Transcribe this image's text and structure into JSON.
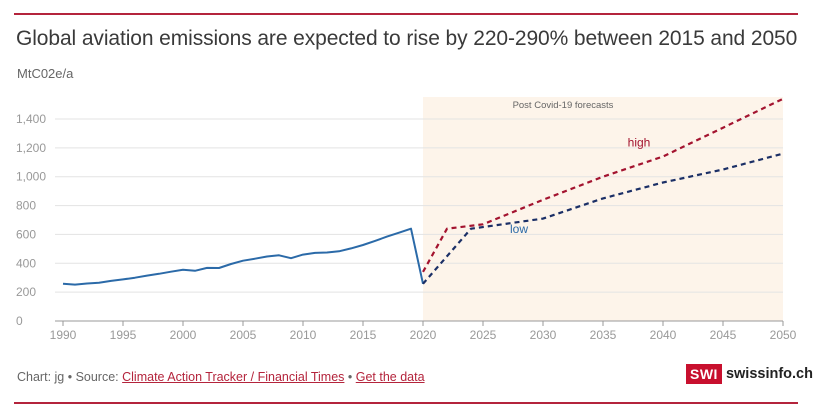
{
  "title": "Global aviation emissions are expected to rise by 220-290% between 2015 and 2050",
  "unit": "MtC02e/a",
  "footer": {
    "prefix": "Chart: jg • Source: ",
    "source_link": "Climate Action Tracker / Financial Times",
    "separator": " • ",
    "data_link": "Get the data"
  },
  "logo": {
    "box": "SWI",
    "text": "swissinfo.ch"
  },
  "colors": {
    "historic": "#2b6aa8",
    "high": "#a3132f",
    "low": "#1b2f66",
    "forecast_bg": "#fdf4ea",
    "accent": "#b4243c"
  },
  "chart_data": {
    "type": "line",
    "xlim": [
      1990,
      2050
    ],
    "ylim": [
      0,
      1500
    ],
    "x_ticks": [
      1990,
      1995,
      2000,
      2005,
      2010,
      2015,
      2020,
      2025,
      2030,
      2035,
      2040,
      2045,
      2050
    ],
    "y_ticks": [
      0,
      200,
      400,
      600,
      800,
      1000,
      1200,
      1400
    ],
    "y_tick_labels": [
      "0",
      "200",
      "400",
      "600",
      "800",
      "1,000",
      "1,200",
      "1,400"
    ],
    "grid": "horizontal",
    "annotations": {
      "forecast_region": {
        "from": 2020,
        "to": 2050,
        "label": "Post Covid-19 forecasts"
      },
      "high_label": {
        "text": "high",
        "x": 2038,
        "y": 1210
      },
      "low_label": {
        "text": "low",
        "x": 2028,
        "y": 610
      }
    },
    "series": [
      {
        "key": "historic",
        "style": "solid",
        "x": [
          1990,
          1991,
          1992,
          1993,
          1994,
          1995,
          1996,
          1997,
          1998,
          1999,
          2000,
          2001,
          2002,
          2003,
          2004,
          2005,
          2006,
          2007,
          2008,
          2009,
          2010,
          2011,
          2012,
          2013,
          2014,
          2015,
          2016,
          2017,
          2018,
          2019,
          2020
        ],
        "values": [
          258,
          252,
          260,
          265,
          278,
          288,
          300,
          315,
          327,
          342,
          355,
          348,
          368,
          367,
          395,
          418,
          432,
          447,
          455,
          435,
          460,
          472,
          475,
          483,
          503,
          527,
          555,
          585,
          612,
          640,
          258
        ]
      },
      {
        "name": "high",
        "style": "dashed",
        "x": [
          2020,
          2022,
          2025,
          2030,
          2035,
          2040,
          2045,
          2050
        ],
        "values": [
          340,
          640,
          670,
          840,
          1000,
          1140,
          1340,
          1540
        ]
      },
      {
        "name": "low",
        "style": "dashed",
        "x": [
          2020,
          2024,
          2030,
          2035,
          2040,
          2045,
          2050
        ],
        "values": [
          258,
          640,
          710,
          850,
          960,
          1050,
          1160
        ]
      }
    ]
  }
}
